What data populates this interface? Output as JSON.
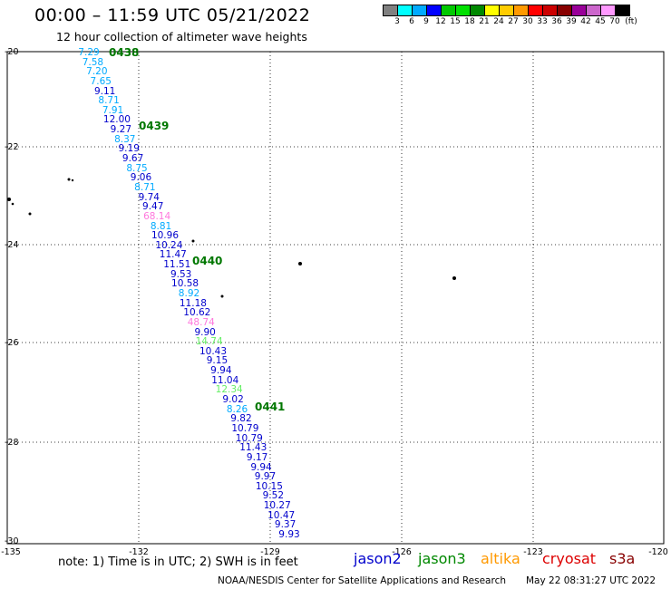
{
  "header": {
    "title": "00:00 – 11:59 UTC 05/21/2022",
    "subtitle": "12 hour collection of altimeter wave heights"
  },
  "legend": {
    "colors": [
      "#808080",
      "#00ffff",
      "#00aaff",
      "#0000ff",
      "#00c800",
      "#00e000",
      "#008800",
      "#ffff00",
      "#ffcc00",
      "#ff9900",
      "#ff0000",
      "#cc0000",
      "#880000",
      "#990099",
      "#cc66cc",
      "#ff99ff",
      "#000000"
    ],
    "labels": [
      "3",
      "6",
      "9",
      "12",
      "15",
      "18",
      "21",
      "24",
      "27",
      "30",
      "33",
      "36",
      "39",
      "42",
      "45",
      "70"
    ],
    "unit": "(ft)"
  },
  "axes": {
    "lat_labels": [
      "-20",
      "-22",
      "-24",
      "-26",
      "-28",
      "-30"
    ],
    "lon_labels": [
      "-135",
      "-132",
      "-129",
      "-126",
      "-123",
      "-120"
    ]
  },
  "passes": [
    "0438",
    "0439",
    "0440",
    "0441"
  ],
  "wave_heights": [
    {
      "v": "7.29",
      "c": "#00aaff"
    },
    {
      "v": "7.58",
      "c": "#00aaff"
    },
    {
      "v": "7.20",
      "c": "#00aaff"
    },
    {
      "v": "7.65",
      "c": "#00aaff"
    },
    {
      "v": "9.11",
      "c": "#0000cc"
    },
    {
      "v": "8.71",
      "c": "#00aaff"
    },
    {
      "v": "7.91",
      "c": "#00aaff"
    },
    {
      "v": "12.00",
      "c": "#0000cc"
    },
    {
      "v": "9.27",
      "c": "#0000cc"
    },
    {
      "v": "8.37",
      "c": "#00aaff"
    },
    {
      "v": "9.19",
      "c": "#0000cc"
    },
    {
      "v": "9.67",
      "c": "#0000cc"
    },
    {
      "v": "8.75",
      "c": "#00aaff"
    },
    {
      "v": "9.06",
      "c": "#0000cc"
    },
    {
      "v": "8.71",
      "c": "#00aaff"
    },
    {
      "v": "9.74",
      "c": "#0000cc"
    },
    {
      "v": "9.47",
      "c": "#0000cc"
    },
    {
      "v": "68.14",
      "c": "#ff77dd"
    },
    {
      "v": "8.81",
      "c": "#00aaff"
    },
    {
      "v": "10.96",
      "c": "#0000cc"
    },
    {
      "v": "10.24",
      "c": "#0000cc"
    },
    {
      "v": "11.47",
      "c": "#0000cc"
    },
    {
      "v": "11.51",
      "c": "#0000cc"
    },
    {
      "v": "9.53",
      "c": "#0000cc"
    },
    {
      "v": "10.58",
      "c": "#0000cc"
    },
    {
      "v": "8.92",
      "c": "#00aaff"
    },
    {
      "v": "11.18",
      "c": "#0000cc"
    },
    {
      "v": "10.62",
      "c": "#0000cc"
    },
    {
      "v": "48.74",
      "c": "#ff77dd"
    },
    {
      "v": "9.90",
      "c": "#0000cc"
    },
    {
      "v": "14.74",
      "c": "#66ee66"
    },
    {
      "v": "10.43",
      "c": "#0000cc"
    },
    {
      "v": "9.15",
      "c": "#0000cc"
    },
    {
      "v": "9.94",
      "c": "#0000cc"
    },
    {
      "v": "11.04",
      "c": "#0000cc"
    },
    {
      "v": "12.34",
      "c": "#66ee66"
    },
    {
      "v": "9.02",
      "c": "#0000cc"
    },
    {
      "v": "8.26",
      "c": "#00aaff"
    },
    {
      "v": "9.82",
      "c": "#0000cc"
    },
    {
      "v": "10.79",
      "c": "#0000cc"
    },
    {
      "v": "10.79",
      "c": "#0000cc"
    },
    {
      "v": "11.43",
      "c": "#0000cc"
    },
    {
      "v": "9.17",
      "c": "#0000cc"
    },
    {
      "v": "9.94",
      "c": "#0000cc"
    },
    {
      "v": "9.97",
      "c": "#0000cc"
    },
    {
      "v": "10.15",
      "c": "#0000cc"
    },
    {
      "v": "9.52",
      "c": "#0000cc"
    },
    {
      "v": "10.27",
      "c": "#0000cc"
    },
    {
      "v": "10.47",
      "c": "#0000cc"
    },
    {
      "v": "9.37",
      "c": "#0000cc"
    },
    {
      "v": "9.93",
      "c": "#0000cc"
    }
  ],
  "footer": {
    "note": "note: 1) Time is in UTC; 2) SWH is in feet",
    "satellites": [
      {
        "name": "jason2",
        "color": "#0000cc"
      },
      {
        "name": "jason3",
        "color": "#008800"
      },
      {
        "name": "altika",
        "color": "#ff9900"
      },
      {
        "name": "cryosat",
        "color": "#dd0000"
      },
      {
        "name": "s3a",
        "color": "#880000"
      }
    ],
    "credit": "NOAA/NESDIS Center for Satellite Applications and Research",
    "timestamp": "May 22 08:31:27 UTC 2022"
  }
}
